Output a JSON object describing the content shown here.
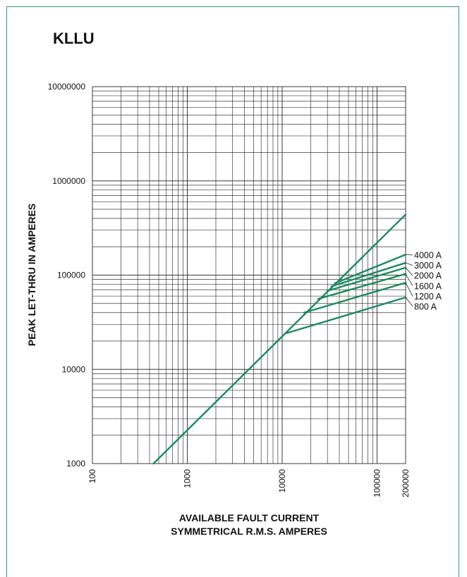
{
  "chart_data": {
    "type": "line",
    "title": "KLLU",
    "xlabel_lines": [
      "AVAILABLE FAULT CURRENT",
      "SYMMETRICAL R.M.S. AMPERES"
    ],
    "ylabel": "PEAK LET-THRU IN AMPERES",
    "x_scale": "log",
    "y_scale": "log",
    "xlim": [
      100,
      200000
    ],
    "ylim": [
      1000,
      10000000
    ],
    "x_ticks": [
      "100",
      "1000",
      "10000",
      "100000",
      "200000"
    ],
    "y_ticks": [
      "1000",
      "10000",
      "100000",
      "1000000",
      "10000000"
    ],
    "grid": true,
    "line_color": "#1a8a5f",
    "reference_line": {
      "name": "",
      "x": [
        440,
        200000
      ],
      "y": [
        1000,
        440000
      ]
    },
    "series": [
      {
        "name": "800 A",
        "x": [
          10800,
          200000
        ],
        "y": [
          24000,
          58000
        ]
      },
      {
        "name": "1200 A",
        "x": [
          17000,
          200000
        ],
        "y": [
          40000,
          83000
        ]
      },
      {
        "name": "1600 A",
        "x": [
          24000,
          200000
        ],
        "y": [
          56000,
          103000
        ]
      },
      {
        "name": "2000 A",
        "x": [
          30000,
          200000
        ],
        "y": [
          68000,
          120000
        ]
      },
      {
        "name": "3000 A",
        "x": [
          33000,
          200000
        ],
        "y": [
          76000,
          135000
        ]
      },
      {
        "name": "4000 A",
        "x": [
          36000,
          200000
        ],
        "y": [
          82000,
          165000
        ]
      }
    ]
  }
}
